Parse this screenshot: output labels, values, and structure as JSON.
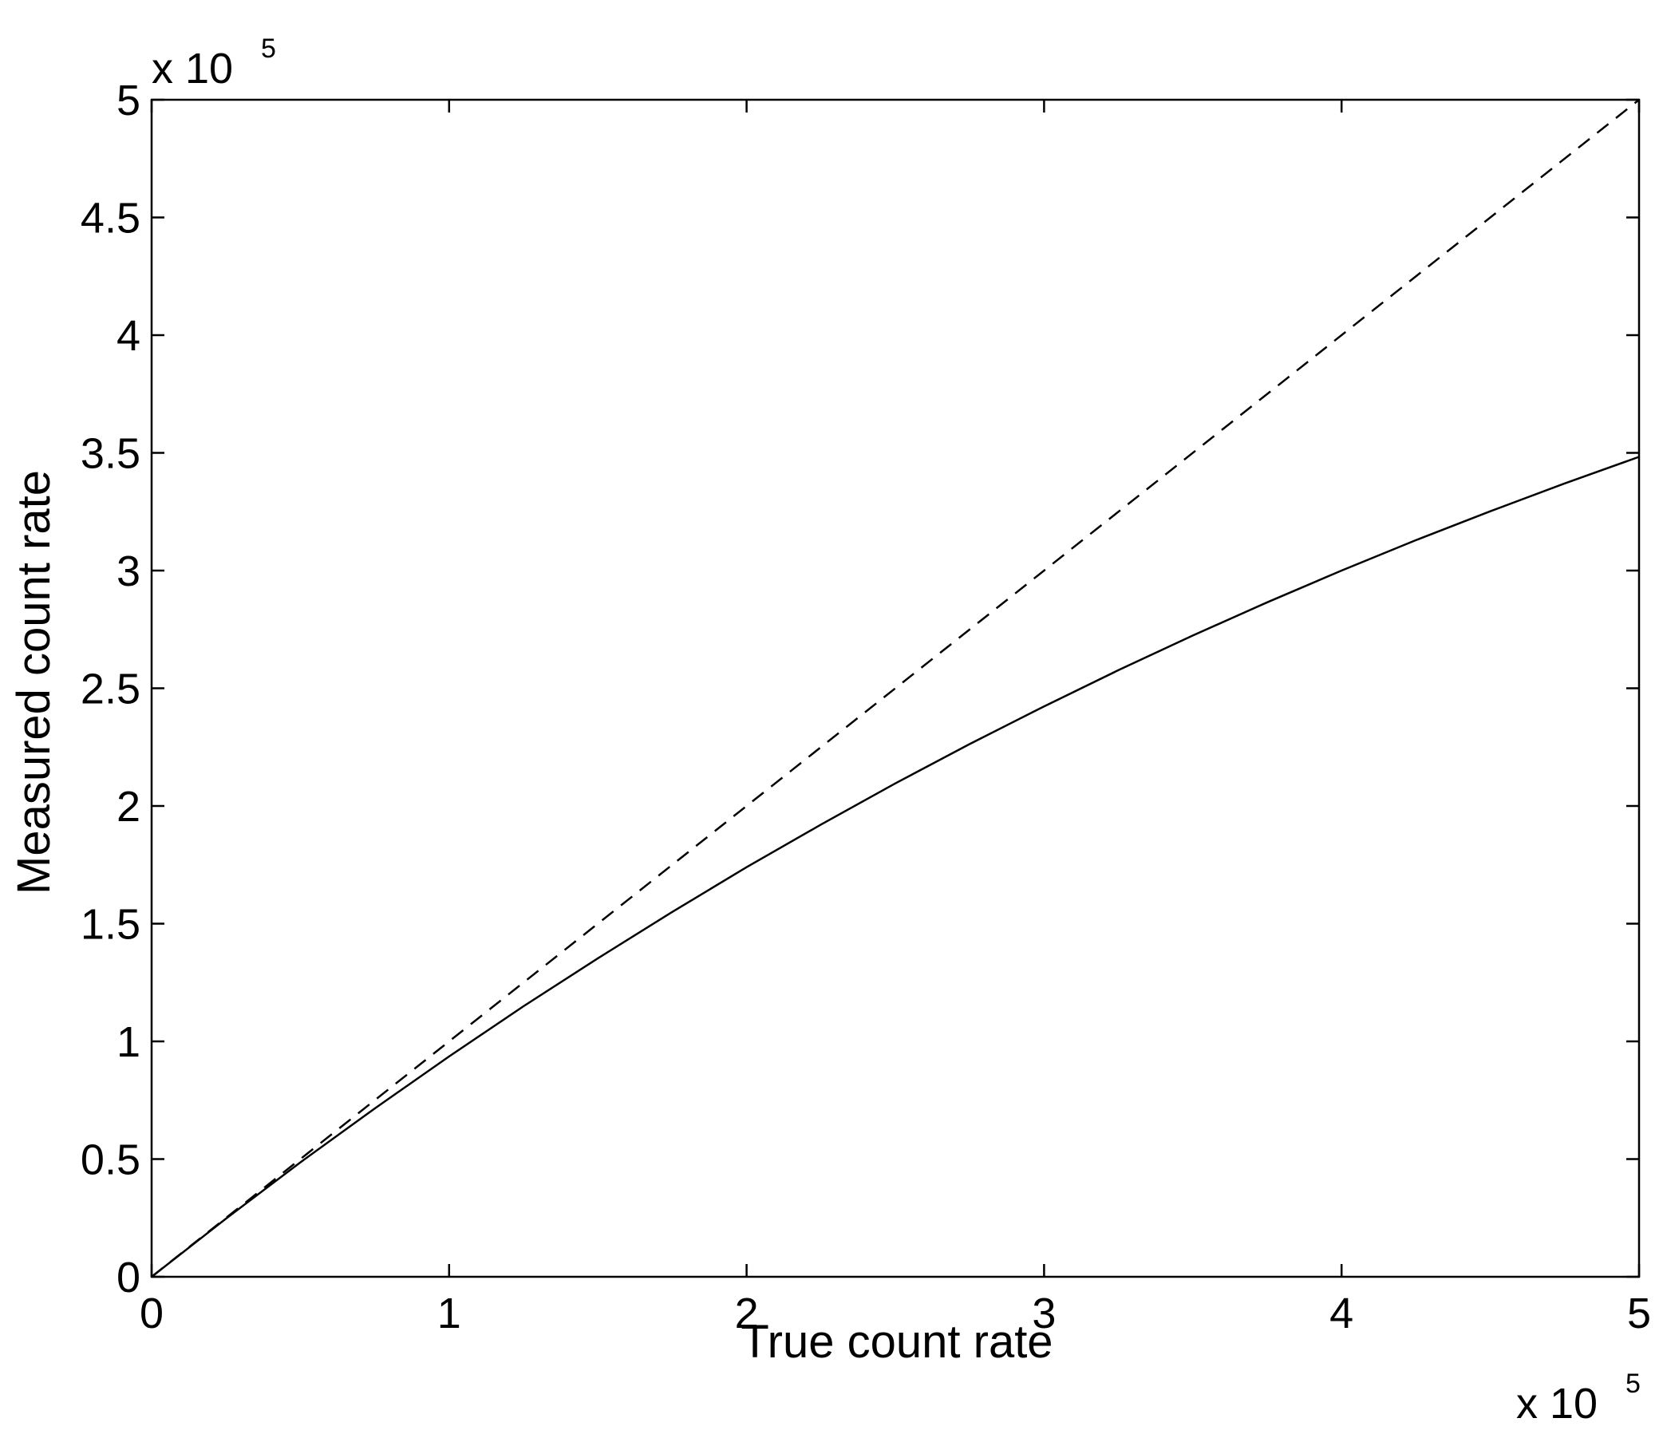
{
  "chart_data": {
    "type": "line",
    "xlabel": "True count rate",
    "ylabel": "Measured count rate",
    "xlim": [
      0,
      500000
    ],
    "ylim": [
      0,
      500000
    ],
    "x_ticks": [
      0,
      100000,
      200000,
      300000,
      400000,
      500000
    ],
    "y_ticks": [
      0,
      50000,
      100000,
      150000,
      200000,
      250000,
      300000,
      350000,
      400000,
      450000,
      500000
    ],
    "x_tick_labels": [
      "0",
      "1",
      "2",
      "3",
      "4",
      "5"
    ],
    "y_tick_labels": [
      "0",
      "0.5",
      "1",
      "1.5",
      "2",
      "2.5",
      "3",
      "3.5",
      "4",
      "4.5",
      "5"
    ],
    "x_multiplier": {
      "base": "x 10",
      "exponent": "5"
    },
    "y_multiplier": {
      "base": "x 10",
      "exponent": "5"
    },
    "grid": false,
    "series": [
      {
        "style": "dashed",
        "color": "#000000",
        "x": [
          0,
          500000
        ],
        "y": [
          0,
          500000
        ]
      },
      {
        "style": "solid",
        "color": "#000000",
        "x": [
          0,
          25000,
          50000,
          75000,
          100000,
          125000,
          150000,
          175000,
          200000,
          225000,
          250000,
          275000,
          300000,
          325000,
          350000,
          375000,
          400000,
          425000,
          450000,
          475000,
          500000
        ],
        "y": [
          0,
          24700,
          48600,
          71500,
          93600,
          114900,
          135300,
          155000,
          174000,
          192100,
          209600,
          226300,
          242300,
          257700,
          272400,
          286500,
          300000,
          312900,
          325200,
          337000,
          348300
        ]
      }
    ]
  }
}
